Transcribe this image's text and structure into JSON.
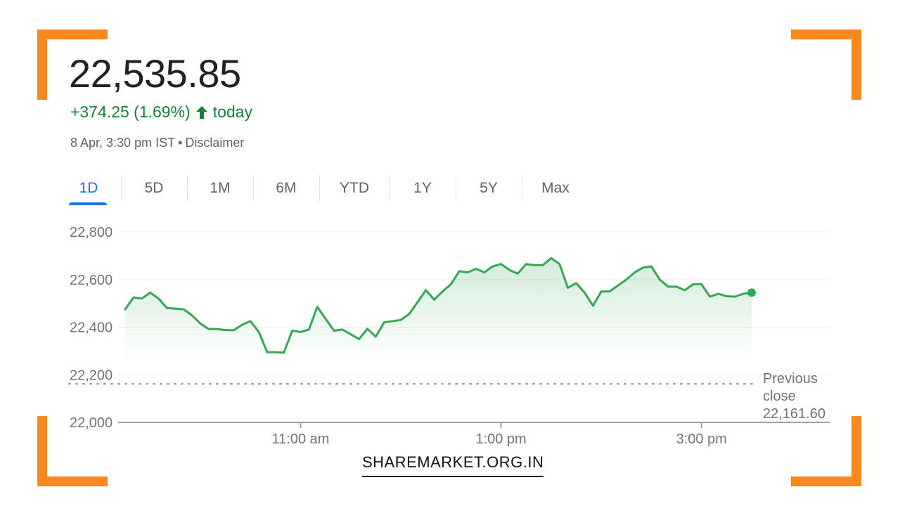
{
  "quote": {
    "price": "22,535.85",
    "change": "+374.25 (1.69%)",
    "change_suffix": "today",
    "timestamp": "8 Apr, 3:30 pm IST",
    "disclaimer": "Disclaimer",
    "positive_color": "#188038"
  },
  "tabs": [
    {
      "label": "1D",
      "active": true
    },
    {
      "label": "5D",
      "active": false
    },
    {
      "label": "1M",
      "active": false
    },
    {
      "label": "6M",
      "active": false
    },
    {
      "label": "YTD",
      "active": false
    },
    {
      "label": "1Y",
      "active": false
    },
    {
      "label": "5Y",
      "active": false
    },
    {
      "label": "Max",
      "active": false
    }
  ],
  "chart_data": {
    "type": "area",
    "title": "",
    "xlabel": "",
    "ylabel": "",
    "ylim": [
      22000,
      22800
    ],
    "yticks": [
      22800,
      22600,
      22400,
      22200,
      22000
    ],
    "ytick_labels": [
      "22,800",
      "22,600",
      "22,400",
      "22,200",
      "22,000"
    ],
    "xlim": [
      "09:15",
      "15:30"
    ],
    "xticks": [
      "11:00",
      "13:00",
      "15:00"
    ],
    "xtick_labels": [
      "11:00 am",
      "1:00 pm",
      "3:00 pm"
    ],
    "grid": true,
    "line_color": "#34a853",
    "previous_close": {
      "value": 22161.6,
      "label_line1": "Previous",
      "label_line2": "close",
      "label_value": "22,161.60"
    },
    "series": [
      {
        "x": [
          "09:15",
          "09:20",
          "09:25",
          "09:30",
          "09:35",
          "09:40",
          "09:45",
          "09:50",
          "09:55",
          "10:00",
          "10:05",
          "10:10",
          "10:15",
          "10:20",
          "10:25",
          "10:30",
          "10:35",
          "10:40",
          "10:45",
          "10:50",
          "10:55",
          "11:00",
          "11:05",
          "11:10",
          "11:15",
          "11:20",
          "11:25",
          "11:30",
          "11:35",
          "11:40",
          "11:45",
          "11:50",
          "11:55",
          "12:00",
          "12:05",
          "12:10",
          "12:15",
          "12:20",
          "12:25",
          "12:30",
          "12:35",
          "12:40",
          "12:45",
          "12:50",
          "12:55",
          "13:00",
          "13:05",
          "13:10",
          "13:15",
          "13:20",
          "13:25",
          "13:30",
          "13:35",
          "13:40",
          "13:45",
          "13:50",
          "13:55",
          "14:00",
          "14:05",
          "14:10",
          "14:15",
          "14:20",
          "14:25",
          "14:30",
          "14:35",
          "14:40",
          "14:45",
          "14:50",
          "14:55",
          "15:00",
          "15:05",
          "15:10",
          "15:15",
          "15:20",
          "15:25",
          "15:30"
        ],
        "values": [
          22475,
          22525,
          22520,
          22545,
          22520,
          22480,
          22478,
          22475,
          22450,
          22415,
          22392,
          22392,
          22388,
          22387,
          22410,
          22425,
          22380,
          22295,
          22295,
          22293,
          22385,
          22380,
          22390,
          22485,
          22435,
          22385,
          22390,
          22370,
          22350,
          22393,
          22360,
          22420,
          22425,
          22430,
          22455,
          22505,
          22555,
          22515,
          22550,
          22580,
          22635,
          22630,
          22645,
          22630,
          22655,
          22665,
          22640,
          22625,
          22665,
          22660,
          22660,
          22690,
          22665,
          22565,
          22585,
          22545,
          22490,
          22550,
          22550,
          22575,
          22600,
          22630,
          22650,
          22655,
          22600,
          22570,
          22570,
          22555,
          22580,
          22580,
          22528,
          22540,
          22530,
          22528,
          22540,
          22545
        ]
      }
    ]
  },
  "brand": {
    "text": "SHAREMARKET.ORG.IN",
    "accent_color": "#f7891f"
  }
}
